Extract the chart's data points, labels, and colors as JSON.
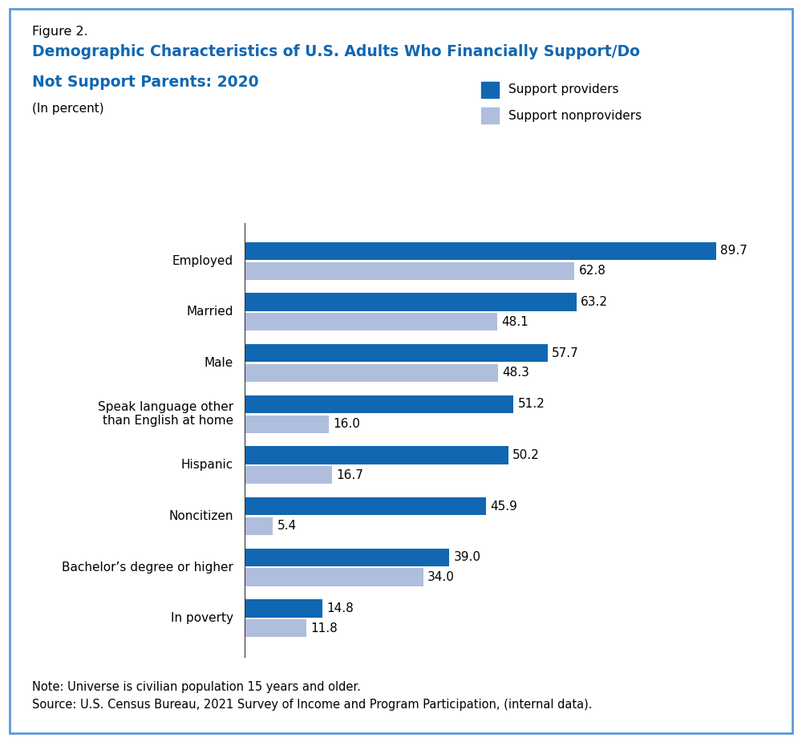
{
  "figure_label": "Figure 2.",
  "title_line1": "Demographic Characteristics of U.S. Adults Who Financially Support/Do",
  "title_line2": "Not Support Parents: 2020",
  "subtitle": "(In percent)",
  "categories": [
    "Employed",
    "Married",
    "Male",
    "Speak language other\nthan English at home",
    "Hispanic",
    "Noncitizen",
    "Bachelor’s degree or higher",
    "In poverty"
  ],
  "support_providers": [
    89.7,
    63.2,
    57.7,
    51.2,
    50.2,
    45.9,
    39.0,
    14.8
  ],
  "support_nonproviders": [
    62.8,
    48.1,
    48.3,
    16.0,
    16.7,
    5.4,
    34.0,
    11.8
  ],
  "provider_color": "#1167b1",
  "nonprovider_color": "#b0bede",
  "provider_label": "Support providers",
  "nonprovider_label": "Support nonproviders",
  "note": "Note: Universe is civilian population 15 years and older.",
  "source": "Source: U.S. Census Bureau, 2021 Survey of Income and Program Participation, (internal data).",
  "title_color": "#1167b1",
  "figure_label_color": "#000000",
  "bar_height": 0.35,
  "xlim": [
    0,
    100
  ],
  "value_fontsize": 11,
  "label_fontsize": 11,
  "legend_fontsize": 11,
  "note_fontsize": 10.5,
  "border_color": "#5b9bd5"
}
